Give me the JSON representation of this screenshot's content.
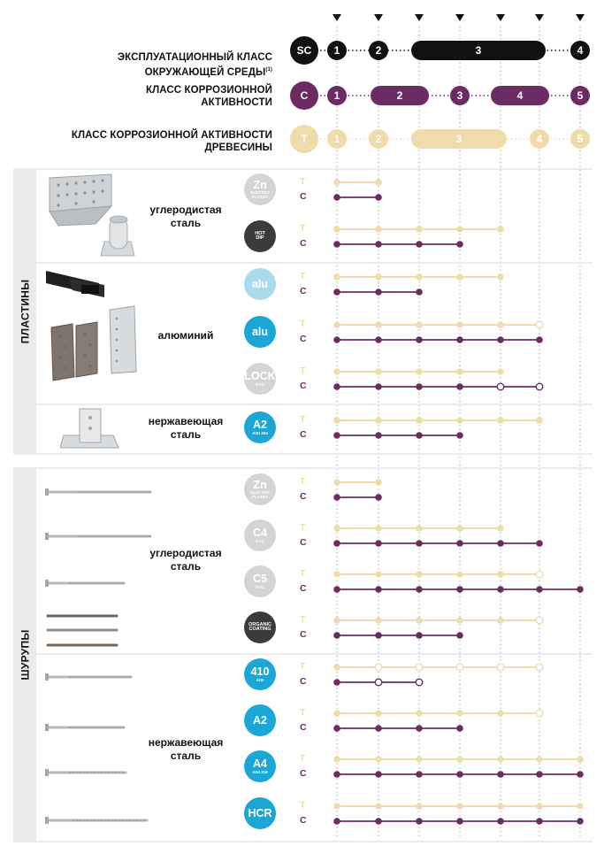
{
  "colors": {
    "black": "#111111",
    "purple": "#6d2b63",
    "beige": "#efdcaa",
    "beige_line": "#ecd8a2",
    "aqua_light": "#a9dbec",
    "cyan": "#1aa6d6",
    "grey_badge": "#d4d4d4",
    "dark_badge": "#3b3b3b",
    "group_bg": "#ebebeb"
  },
  "header": {
    "sc_label": "ЭКСПЛУАТАЦИОННЫЙ КЛАСС\nОКРУЖАЮЩЕЙ СРЕДЫ",
    "sc_footnote": "(1)",
    "c_label": "КЛАСС КОРРОЗИОННОЙ\nАКТИВНОСТИ",
    "t_label": "КЛАСС КОРРОЗИОННОЙ АКТИВНОСТИ\nДРЕВЕСИНЫ",
    "sc_badge": "SC",
    "c_badge": "C",
    "t_badge": "T",
    "sc_classes": [
      "1",
      "2",
      "3",
      "4"
    ],
    "c_classes": [
      "1",
      "2",
      "3",
      "4",
      "5"
    ],
    "t_classes": [
      "1",
      "2",
      "3",
      "4",
      "5"
    ]
  },
  "groups": {
    "plates": "ПЛАСТИНЫ",
    "screws": "ШУРУПЫ"
  },
  "materials": {
    "plates_carbon": "углеродистая\nсталь",
    "plates_alu": "алюминий",
    "plates_stainless": "нержавеющая\nсталь",
    "screws_carbon": "углеродистая\nсталь",
    "screws_stainless": "нержавеющая\nсталь"
  },
  "row_letters": {
    "t": "T",
    "c": "C"
  },
  "coatings": [
    {
      "main": "Zn",
      "sub": "ELECTRO\nPLATED",
      "style": "grey",
      "t": [
        1,
        2
      ],
      "t_open": [],
      "c": [
        1,
        2
      ],
      "c_open": []
    },
    {
      "main": "HOT\nDIP",
      "sub": "",
      "style": "dark",
      "t": [
        1,
        2,
        3,
        4,
        5
      ],
      "t_open": [],
      "c": [
        1,
        2,
        3,
        4
      ],
      "c_open": []
    },
    {
      "main": "alu",
      "sub": "",
      "style": "aqua",
      "t": [
        1,
        2,
        3,
        4,
        5
      ],
      "t_open": [],
      "c": [
        1,
        2,
        3
      ],
      "c_open": []
    },
    {
      "main": "alu",
      "sub": "",
      "style": "cyan",
      "t": [
        1,
        2,
        3,
        4,
        5,
        6
      ],
      "t_open": [
        6
      ],
      "c": [
        1,
        2,
        3,
        4,
        5,
        6
      ],
      "c_open": []
    },
    {
      "main": "LOCK",
      "sub": "EVO",
      "style": "grey",
      "t": [
        1,
        2,
        3,
        4,
        5
      ],
      "t_open": [],
      "c": [
        1,
        2,
        3,
        4,
        5,
        6
      ],
      "c_open": [
        5,
        6
      ]
    },
    {
      "main": "A2",
      "sub": "AISI 304",
      "style": "cyan",
      "t": [
        1,
        2,
        3,
        4,
        5,
        6
      ],
      "t_open": [],
      "c": [
        1,
        2,
        3,
        4
      ],
      "c_open": []
    },
    {
      "main": "Zn",
      "sub": "ELECTRO\nPLATED",
      "style": "grey",
      "t": [
        1,
        2
      ],
      "t_open": [],
      "c": [
        1,
        2
      ],
      "c_open": []
    },
    {
      "main": "C4",
      "sub": "EVO",
      "style": "grey",
      "t": [
        1,
        2,
        3,
        4,
        5
      ],
      "t_open": [],
      "c": [
        1,
        2,
        3,
        4,
        5,
        6
      ],
      "c_open": []
    },
    {
      "main": "C5",
      "sub": "EVO",
      "style": "grey",
      "t": [
        1,
        2,
        3,
        4,
        5,
        6
      ],
      "t_open": [
        6
      ],
      "c": [
        1,
        2,
        3,
        4,
        5,
        6,
        7
      ],
      "c_open": []
    },
    {
      "main": "ORGANIC\nCOATING",
      "sub": "",
      "style": "dark",
      "t": [
        1,
        2,
        3,
        4,
        5,
        6
      ],
      "t_open": [
        6
      ],
      "c": [
        1,
        2,
        3,
        4
      ],
      "c_open": []
    },
    {
      "main": "410",
      "sub": "AISI",
      "style": "cyan",
      "t": [
        1,
        2,
        3,
        4,
        5,
        6
      ],
      "t_open": [
        2,
        3,
        4,
        5,
        6
      ],
      "c": [
        1,
        2,
        3
      ],
      "c_open": [
        2,
        3
      ]
    },
    {
      "main": "A2",
      "sub": "",
      "style": "cyan",
      "t": [
        1,
        2,
        3,
        4,
        5,
        6
      ],
      "t_open": [
        6
      ],
      "c": [
        1,
        2,
        3,
        4
      ],
      "c_open": []
    },
    {
      "main": "A4",
      "sub": "AISI 316",
      "style": "cyan",
      "t": [
        1,
        2,
        3,
        4,
        5,
        6,
        7
      ],
      "t_open": [],
      "c": [
        1,
        2,
        3,
        4,
        5,
        6,
        7
      ],
      "c_open": []
    },
    {
      "main": "HCR",
      "sub": "",
      "style": "cyan",
      "t": [
        1,
        2,
        3,
        4,
        5,
        6,
        7
      ],
      "t_open": [],
      "c": [
        1,
        2,
        3,
        4,
        5,
        6,
        7
      ],
      "c_open": []
    }
  ]
}
